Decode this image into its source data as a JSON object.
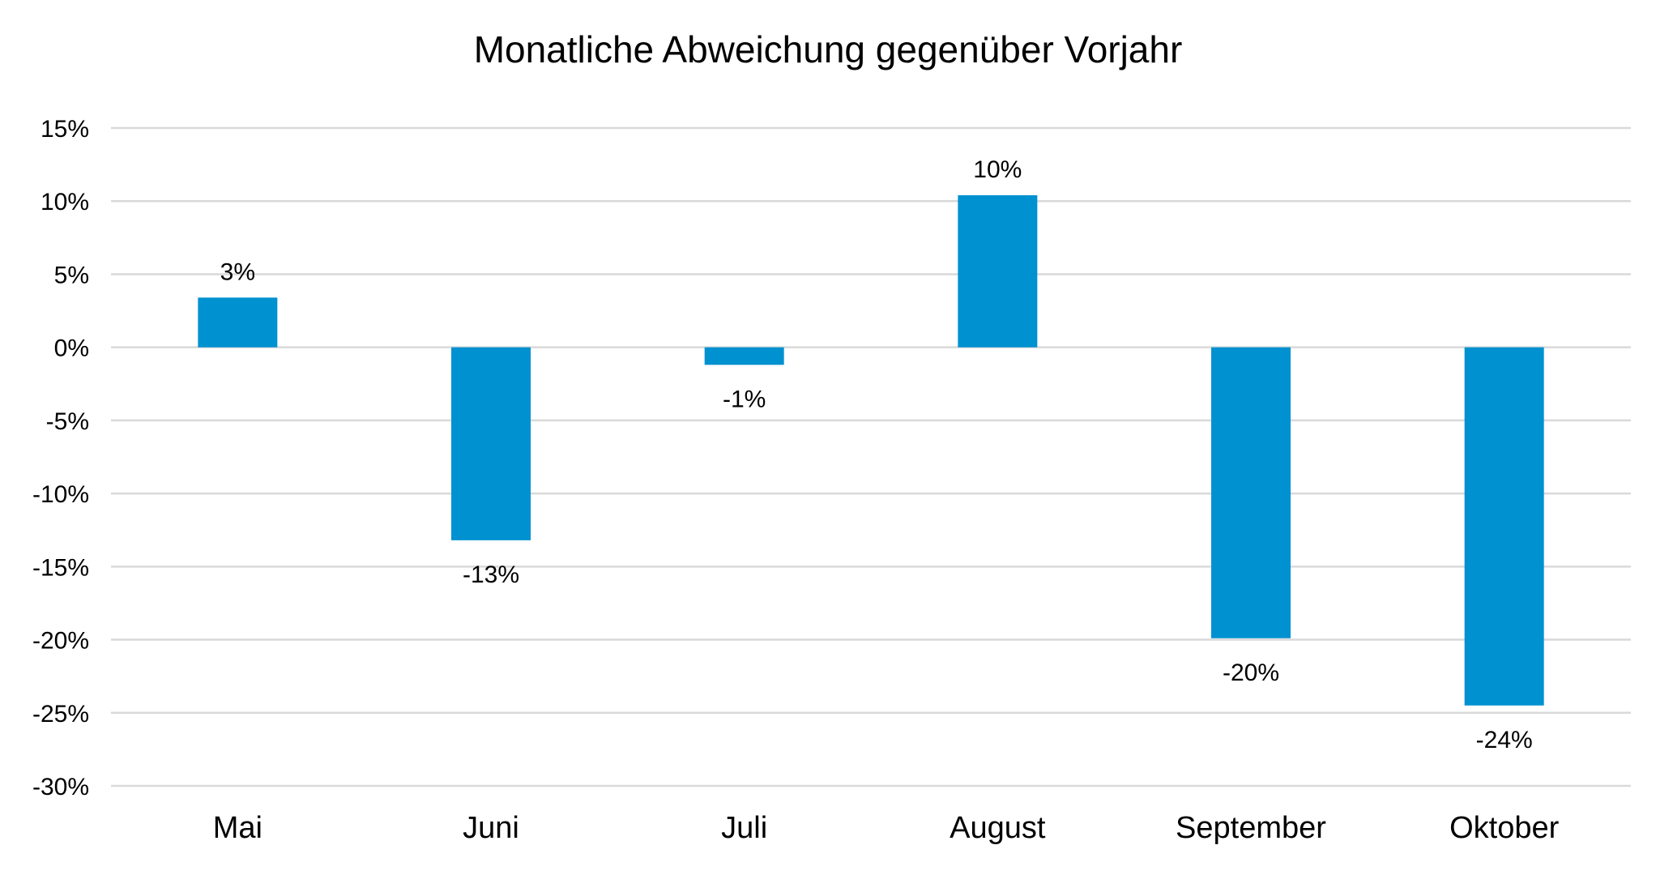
{
  "chart_data": {
    "type": "bar",
    "title": "Monatliche Abweichung gegenüber Vorjahr",
    "xlabel": "",
    "ylabel": "",
    "categories": [
      "Mai",
      "Juni",
      "Juli",
      "August",
      "September",
      "Oktober"
    ],
    "values": [
      3.4,
      -13.2,
      -1.2,
      10.4,
      -19.9,
      -24.5
    ],
    "data_labels": [
      "3%",
      "-13%",
      "-1%",
      "10%",
      "-20%",
      "-24%"
    ],
    "ylim": [
      -30,
      15
    ],
    "yticks": [
      15,
      10,
      5,
      0,
      -5,
      -10,
      -15,
      -20,
      -25,
      -30
    ],
    "ytick_labels": [
      "15%",
      "10%",
      "5%",
      "0%",
      "-5%",
      "-10%",
      "-15%",
      "-20%",
      "-25%",
      "-30%"
    ],
    "grid": true,
    "legend": "none",
    "colors": {
      "bar": "#0091d0",
      "grid": "#d9d9d9",
      "text": "#000000"
    }
  }
}
